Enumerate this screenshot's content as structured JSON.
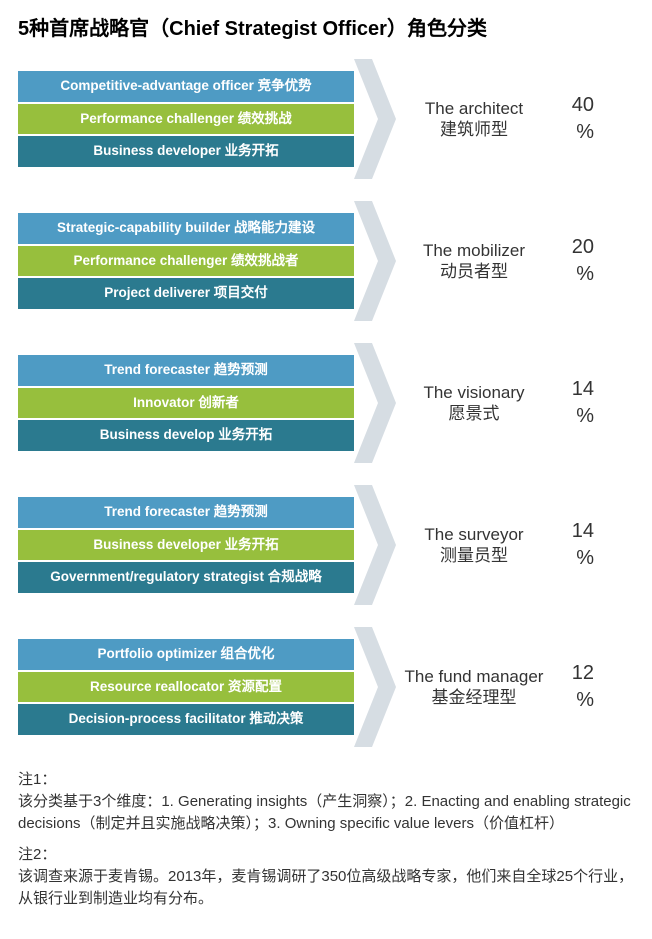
{
  "title": "5种首席战略官（Chief Strategist Officer）角色分类",
  "colors": {
    "bar1": "#4e9bc4",
    "bar2": "#97bf3d",
    "bar3": "#2b7a8f",
    "arrowFill": "#d6dde3",
    "arrowStroke": "#d6dde3",
    "textWhite": "#ffffff",
    "textDark": "#333333"
  },
  "layout": {
    "barsWidth": 336,
    "arrowWidth": 42,
    "arrowHeight": 120,
    "labelWidth": 150,
    "pctWidth": 50,
    "barFontSize": 13.5,
    "labelFontSize": 17,
    "pctFontSize": 20
  },
  "groups": [
    {
      "bars": [
        "Competitive-advantage officer 竞争优势",
        "Performance challenger 绩效挑战",
        "Business developer 业务开拓"
      ],
      "label_en": "The architect",
      "label_zh": "建筑师型",
      "pct": "40",
      "pct_unit": "%"
    },
    {
      "bars": [
        "Strategic-capability builder 战略能力建设",
        "Performance challenger 绩效挑战者",
        "Project deliverer 项目交付"
      ],
      "label_en": "The mobilizer",
      "label_zh": "动员者型",
      "pct": "20",
      "pct_unit": "%"
    },
    {
      "bars": [
        "Trend forecaster 趋势预测",
        "Innovator 创新者",
        "Business develop 业务开拓"
      ],
      "label_en": "The visionary",
      "label_zh": "愿景式",
      "pct": "14",
      "pct_unit": "%"
    },
    {
      "bars": [
        "Trend forecaster 趋势预测",
        "Business developer 业务开拓",
        "Government/regulatory strategist 合规战略"
      ],
      "label_en": "The surveyor",
      "label_zh": "测量员型",
      "pct": "14",
      "pct_unit": "%"
    },
    {
      "bars": [
        "Portfolio optimizer 组合优化",
        "Resource reallocator 资源配置",
        "Decision-process facilitator 推动决策"
      ],
      "label_en": "The fund manager",
      "label_zh": "基金经理型",
      "pct": "12",
      "pct_unit": "%"
    }
  ],
  "notes": {
    "n1_title": "注1：",
    "n1_body": "该分类基于3个维度：1. Generating insights（产生洞察）；2. Enacting and enabling strategic decisions（制定并且实施战略决策）；3. Owning specific value levers（价值杠杆）",
    "n2_title": "注2：",
    "n2_body": "该调查来源于麦肯锡。2013年，麦肯锡调研了350位高级战略专家，他们来自全球25个行业，从银行业到制造业均有分布。"
  }
}
